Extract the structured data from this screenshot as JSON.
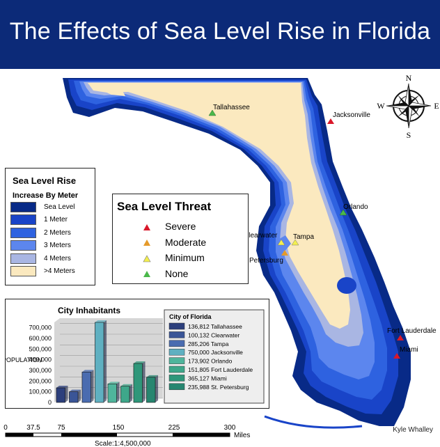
{
  "title": "The Effects of Sea Level Rise in Florida",
  "colors": {
    "banner": "#0c2a78",
    "land": "#fbe9bf",
    "sea_level": "#082a87",
    "m1": "#1944c8",
    "m2": "#2e62e0",
    "m3": "#5c86ee",
    "m4": "#a9b6e3",
    "severe": "#d9182a",
    "moderate": "#e59a2a",
    "minimum": "#f3ef4e",
    "none": "#4bb84a"
  },
  "compass": {
    "n": "N",
    "s": "S",
    "e": "E",
    "w": "W"
  },
  "cities": [
    {
      "name": "Tallahassee",
      "threat": "none"
    },
    {
      "name": "Jacksonville",
      "threat": "severe"
    },
    {
      "name": "Orlando",
      "threat": "none"
    },
    {
      "name": "Clearwater",
      "threat": "minimum"
    },
    {
      "name": "Tampa",
      "threat": "minimum"
    },
    {
      "name": "St. Petersburg",
      "threat": "moderate"
    },
    {
      "name": "Fort Lauderdale",
      "threat": "severe"
    },
    {
      "name": "Miami",
      "threat": "severe"
    }
  ],
  "sea_level_legend": {
    "title": "Sea Level Rise",
    "subtitle": "Increase By Meter",
    "items": [
      "Sea Level",
      "1 Meter",
      "2 Meters",
      "3 Meters",
      "4 Meters",
      ">4 Meters"
    ]
  },
  "threat_legend": {
    "title": "Sea Level Threat",
    "items": [
      "Severe",
      "Moderate",
      "Minimum",
      "None"
    ]
  },
  "chart_data": {
    "type": "bar",
    "title": "City Inhabitants",
    "ylabel": "POPULATION",
    "ylim": [
      0,
      750000
    ],
    "yticks": [
      "0",
      "100,000",
      "200,000",
      "300,000",
      "400,000",
      "500,000",
      "600,000",
      "700,000"
    ],
    "legend_title": "City of Florida",
    "categories": [
      "Tallahassee",
      "Clearwater",
      "Tampa",
      "Jacksonville",
      "Orlando",
      "Fort Lauderdale",
      "Miami",
      "St. Petersburg"
    ],
    "values": [
      136812,
      100132,
      285206,
      750000,
      173902,
      151805,
      365127,
      235988
    ],
    "legend_entries": [
      "136,812 Tallahassee",
      "100,132 Clearwater",
      "285,206 Tampa",
      "750,000 Jacksonville",
      "173,902 Orlando",
      "151,805 Fort Lauderdale",
      "365,127 Miami",
      "235,988 St. Petersburg"
    ],
    "bar_colors": [
      "#2c3f7c",
      "#3a5597",
      "#4a6cb0",
      "#5fb0c1",
      "#4fb59c",
      "#3ea78a",
      "#2f977a",
      "#278670"
    ]
  },
  "scale": {
    "ticks": [
      "0",
      "37.5",
      "75",
      "150",
      "225",
      "300"
    ],
    "unit": "Miles",
    "ratio": "Scale:1:4,500,000"
  },
  "credit": "Kyle Whalley"
}
